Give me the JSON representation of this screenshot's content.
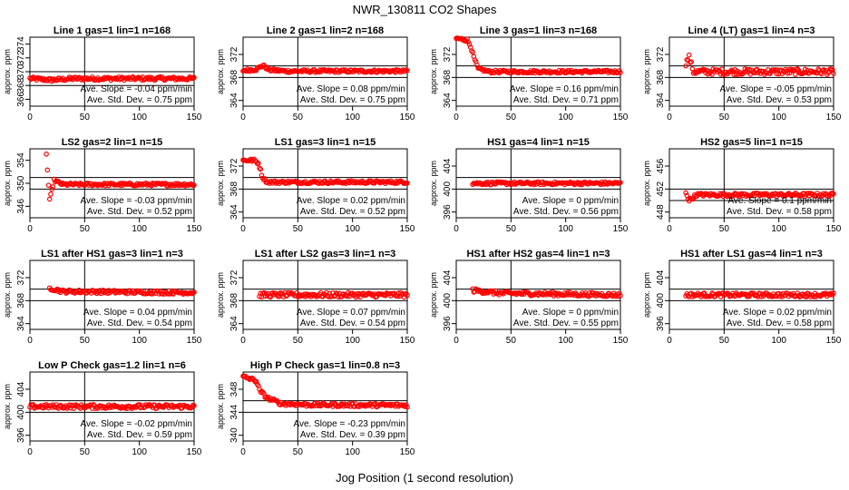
{
  "page": {
    "title": "NWR_130811  CO2 Shapes",
    "xlabel": "Jog Position (1 second resolution)"
  },
  "style": {
    "point_color": "#ff0000",
    "line_color": "#000000",
    "background": "#ffffff"
  },
  "chart_data": [
    {
      "type": "scatter",
      "title": "Line 1 gas=1 lin=1 n=168",
      "ylabel": "approx. ppm",
      "xlim": [
        0,
        150
      ],
      "xticks": [
        0,
        50,
        100,
        150
      ],
      "ylim": [
        365,
        375
      ],
      "yticks": [
        366,
        368,
        370,
        372,
        374
      ],
      "hlines": [
        370,
        368
      ],
      "vline": 50,
      "x": [
        0,
        20,
        40,
        150
      ],
      "y": [
        369,
        368.8,
        369,
        369
      ],
      "slope": "Ave. Slope = -0.04  ppm/min",
      "stddev": "Ave. Std. Dev. = 0.75  ppm",
      "noise": 0.25
    },
    {
      "type": "scatter",
      "title": "Line 2 gas=1 lin=2 n=168",
      "ylabel": "approx. ppm",
      "xlim": [
        0,
        150
      ],
      "xticks": [
        0,
        50,
        100,
        150
      ],
      "ylim": [
        363,
        375
      ],
      "yticks": [
        364,
        368,
        372
      ],
      "hlines": [
        370,
        368
      ],
      "vline": 50,
      "x": [
        0,
        12,
        18,
        24,
        40,
        150
      ],
      "y": [
        369.2,
        369.4,
        370.1,
        369.3,
        369.1,
        369.1
      ],
      "slope": "Ave. Slope = 0.08  ppm/min",
      "stddev": "Ave. Std. Dev. = 0.75  ppm",
      "noise": 0.25
    },
    {
      "type": "scatter",
      "title": "Line 3 gas=1 lin=3 n=168",
      "ylabel": "approx. ppm",
      "xlim": [
        0,
        150
      ],
      "xticks": [
        0,
        50,
        100,
        150
      ],
      "ylim": [
        363,
        375
      ],
      "yticks": [
        364,
        368,
        372
      ],
      "hlines": [
        370,
        368
      ],
      "vline": 50,
      "x": [
        0,
        10,
        13,
        16,
        20,
        30,
        150
      ],
      "y": [
        374.8,
        374.5,
        373.5,
        371.5,
        369.5,
        369.0,
        369.0
      ],
      "slope": "Ave. Slope = 0.16  ppm/min",
      "stddev": "Ave. Std. Dev. = 0.71  ppm",
      "noise": 0.25
    },
    {
      "type": "scatter",
      "title": "Line 4 (LT) gas=1 lin=4 n=3",
      "ylabel": "approx. ppm",
      "xlim": [
        0,
        150
      ],
      "xticks": [
        0,
        50,
        100,
        150
      ],
      "ylim": [
        363,
        375
      ],
      "yticks": [
        364,
        368,
        372
      ],
      "hlines": [
        370,
        368
      ],
      "vline": 50,
      "x": [
        15,
        18,
        22,
        30,
        150
      ],
      "y": [
        370.5,
        371.5,
        369,
        369,
        369
      ],
      "slope": "Ave. Slope = -0.05  ppm/min",
      "stddev": "Ave. Std. Dev. = 0.53  ppm",
      "noise": 0.5
    },
    {
      "type": "scatter",
      "title": "LS2 gas=2 lin=1 n=15",
      "ylabel": "approx. ppm",
      "xlim": [
        0,
        150
      ],
      "xticks": [
        0,
        50,
        100,
        150
      ],
      "ylim": [
        344,
        356
      ],
      "yticks": [
        346,
        350,
        354
      ],
      "hlines": [
        351,
        349
      ],
      "vline": 50,
      "x": [
        15,
        18,
        22,
        30,
        150
      ],
      "y": [
        355,
        347,
        350.5,
        349.8,
        349.8
      ],
      "slope": "Ave. Slope = -0.03  ppm/min",
      "stddev": "Ave. Std. Dev. = 0.52  ppm",
      "noise": 0.25
    },
    {
      "type": "scatter",
      "title": "LS1 gas=3 lin=1 n=15",
      "ylabel": "approx. ppm",
      "xlim": [
        0,
        150
      ],
      "xticks": [
        0,
        50,
        100,
        150
      ],
      "ylim": [
        363,
        375
      ],
      "yticks": [
        364,
        368,
        372
      ],
      "hlines": [
        370,
        368
      ],
      "vline": 50,
      "x": [
        0,
        10,
        14,
        18,
        22,
        150
      ],
      "y": [
        373,
        373,
        372.5,
        370,
        369.2,
        369.2
      ],
      "slope": "Ave. Slope = 0.02  ppm/min",
      "stddev": "Ave. Std. Dev. = 0.52  ppm",
      "noise": 0.25
    },
    {
      "type": "scatter",
      "title": "HS1 gas=4 lin=1 n=15",
      "ylabel": "approx. ppm",
      "xlim": [
        0,
        150
      ],
      "xticks": [
        0,
        50,
        100,
        150
      ],
      "ylim": [
        395,
        407
      ],
      "yticks": [
        396,
        400,
        404
      ],
      "hlines": [
        402,
        400
      ],
      "vline": 50,
      "x": [
        15,
        20,
        150
      ],
      "y": [
        401,
        401,
        401
      ],
      "slope": "Ave. Slope = 0  ppm/min",
      "stddev": "Ave. Std. Dev. = 0.56  ppm",
      "noise": 0.25
    },
    {
      "type": "scatter",
      "title": "HS2 gas=5 lin=1 n=15",
      "ylabel": "approx. ppm",
      "xlim": [
        0,
        150
      ],
      "xticks": [
        0,
        50,
        100,
        150
      ],
      "ylim": [
        447,
        459
      ],
      "yticks": [
        448,
        452,
        456
      ],
      "hlines": [
        452,
        450
      ],
      "vline": 50,
      "x": [
        15,
        18,
        25,
        150
      ],
      "y": [
        451.5,
        450,
        451,
        451
      ],
      "slope": "Ave. Slope = 0.1  ppm/min",
      "stddev": "Ave. Std. Dev. = 0.58  ppm",
      "noise": 0.3
    },
    {
      "type": "scatter",
      "title": "LS1 after HS1 gas=3 lin=1 n=3",
      "ylabel": "approx. ppm",
      "xlim": [
        0,
        150
      ],
      "xticks": [
        0,
        50,
        100,
        150
      ],
      "ylim": [
        363,
        375
      ],
      "yticks": [
        364,
        368,
        372
      ],
      "hlines": [
        370,
        368
      ],
      "vline": 50,
      "x": [
        18,
        30,
        150
      ],
      "y": [
        370.2,
        369.6,
        369.4
      ],
      "slope": "Ave. Slope = 0.04  ppm/min",
      "stddev": "Ave. Std. Dev. = 0.54  ppm",
      "noise": 0.3
    },
    {
      "type": "scatter",
      "title": "LS1 after LS2 gas=3 lin=1 n=3",
      "ylabel": "approx. ppm",
      "xlim": [
        0,
        150
      ],
      "xticks": [
        0,
        50,
        100,
        150
      ],
      "ylim": [
        363,
        375
      ],
      "yticks": [
        364,
        368,
        372
      ],
      "hlines": [
        370,
        368
      ],
      "vline": 50,
      "x": [
        15,
        150
      ],
      "y": [
        369,
        369
      ],
      "slope": "Ave. Slope = 0.07  ppm/min",
      "stddev": "Ave. Std. Dev. = 0.54  ppm",
      "noise": 0.4
    },
    {
      "type": "scatter",
      "title": "HS1 after HS2 gas=4 lin=1 n=3",
      "ylabel": "approx. ppm",
      "xlim": [
        0,
        150
      ],
      "xticks": [
        0,
        50,
        100,
        150
      ],
      "ylim": [
        395,
        407
      ],
      "yticks": [
        396,
        400,
        404
      ],
      "hlines": [
        402,
        400
      ],
      "vline": 50,
      "x": [
        15,
        40,
        150
      ],
      "y": [
        401.8,
        401.3,
        401
      ],
      "slope": "Ave. Slope = 0  ppm/min",
      "stddev": "Ave. Std. Dev. = 0.55  ppm",
      "noise": 0.35
    },
    {
      "type": "scatter",
      "title": "HS1 after LS1 gas=4 lin=1 n=3",
      "ylabel": "approx. ppm",
      "xlim": [
        0,
        150
      ],
      "xticks": [
        0,
        50,
        100,
        150
      ],
      "ylim": [
        395,
        407
      ],
      "yticks": [
        396,
        400,
        404
      ],
      "hlines": [
        402,
        400
      ],
      "vline": 50,
      "x": [
        15,
        150
      ],
      "y": [
        401,
        401
      ],
      "slope": "Ave. Slope = 0.02  ppm/min",
      "stddev": "Ave. Std. Dev. = 0.58  ppm",
      "noise": 0.35
    },
    {
      "type": "scatter",
      "title": "Low P Check gas=1.2 lin=1 n=6",
      "ylabel": "approx. ppm",
      "xlim": [
        0,
        150
      ],
      "xticks": [
        0,
        50,
        100,
        150
      ],
      "ylim": [
        395,
        407
      ],
      "yticks": [
        396,
        400,
        404
      ],
      "hlines": [
        402,
        400
      ],
      "vline": 50,
      "x": [
        0,
        150
      ],
      "y": [
        401,
        401
      ],
      "slope": "Ave. Slope = -0.02  ppm/min",
      "stddev": "Ave. Std. Dev. = 0.59  ppm",
      "noise": 0.35
    },
    {
      "type": "scatter",
      "title": "High P Check gas=1 lin=0.8 n=3",
      "ylabel": "approx. ppm",
      "xlim": [
        0,
        150
      ],
      "xticks": [
        0,
        50,
        100,
        150
      ],
      "ylim": [
        339,
        351
      ],
      "yticks": [
        340,
        344,
        348
      ],
      "hlines": [
        346,
        344
      ],
      "vline": 50,
      "x": [
        0,
        12,
        15,
        22,
        35,
        60,
        150
      ],
      "y": [
        350.2,
        349.5,
        347.8,
        346.5,
        345.5,
        345.3,
        345.2
      ],
      "slope": "Ave. Slope = -0.23  ppm/min",
      "stddev": "Ave. Std. Dev. = 0.39  ppm",
      "noise": 0.3
    }
  ]
}
